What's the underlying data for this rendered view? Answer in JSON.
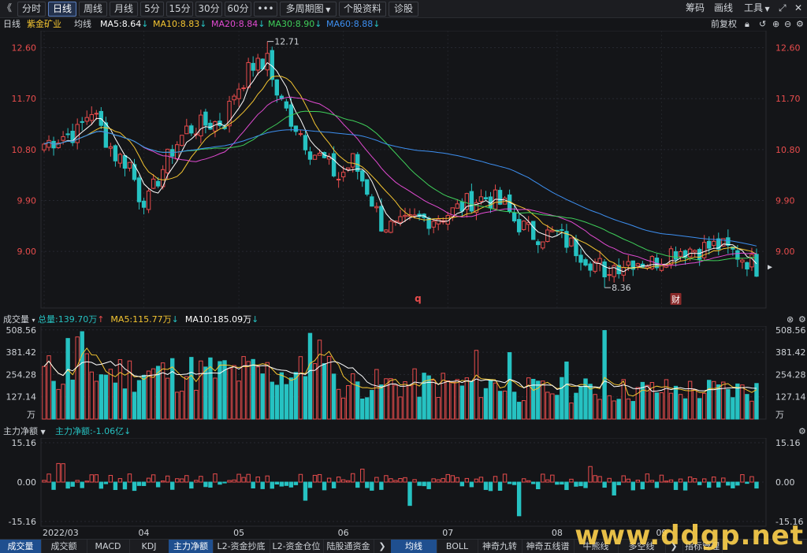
{
  "toolbar": {
    "back_glyph": "《",
    "periods": [
      "分时",
      "日线",
      "周线",
      "月线",
      "5分",
      "15分",
      "30分",
      "60分",
      "•••",
      "多周期图",
      "个股资料",
      "诊股"
    ],
    "active_period": "日线",
    "right_items": [
      "筹码",
      "画线",
      "工具"
    ],
    "expand_glyph": "⤢",
    "close_glyph": "✕"
  },
  "stock": {
    "period_label": "日线",
    "name": "紫金矿业",
    "ma_label": "均线",
    "ma": [
      {
        "label": "MA5:8.64",
        "color": "#ffffff",
        "dir": "down"
      },
      {
        "label": "MA10:8.83",
        "color": "#f4c531",
        "dir": "down"
      },
      {
        "label": "MA20:8.84",
        "color": "#e24bd2",
        "dir": "down"
      },
      {
        "label": "MA30:8.90",
        "color": "#3fcf5a",
        "dir": "down"
      },
      {
        "label": "MA60:8.88",
        "color": "#3d8ff0",
        "dir": "down"
      }
    ],
    "fq_label": "前复权",
    "arrow_down": "↓",
    "arrow_up": "↑"
  },
  "colors": {
    "up": "#e74c4c",
    "down": "#26c2c2",
    "ma5": "#ffffff",
    "ma10": "#f4c531",
    "ma20": "#e24bd2",
    "ma30": "#3fcf5a",
    "ma60": "#3d8ff0"
  },
  "chart_data": [
    {
      "type": "candlestick",
      "title": "日线",
      "y_ticks": [
        "12.60",
        "11.70",
        "10.80",
        "9.90",
        "9.00"
      ],
      "ylim": [
        8.0,
        12.9
      ],
      "annotations": {
        "high": "12.71",
        "low": "8.36",
        "event_q": "q",
        "event_cai": "财"
      },
      "x_ticks": [
        "2022/03",
        "04",
        "05",
        "06",
        "07",
        "08",
        "09"
      ],
      "series_names": [
        "MA5",
        "MA10",
        "MA20",
        "MA30",
        "MA60"
      ]
    },
    {
      "type": "bar",
      "title": "成交量",
      "legend": [
        {
          "label": "总量:139.70万",
          "color": "#26c2c2",
          "dir": "up"
        },
        {
          "label": "MA5:115.77万",
          "color": "#f4c531",
          "dir": "down"
        },
        {
          "label": "MA10:185.09万",
          "color": "#ffffff",
          "dir": "down"
        }
      ],
      "y_ticks": [
        "508.56",
        "381.42",
        "254.28",
        "127.14"
      ],
      "unit": "万",
      "ylim": [
        0,
        530
      ]
    },
    {
      "type": "bar",
      "title": "主力净额",
      "legend": [
        {
          "label": "主力净额:-1.06亿",
          "color": "#26c2c2",
          "dir": "down"
        }
      ],
      "y_ticks": [
        "15.16",
        "0.00",
        "-15.16"
      ],
      "ylim": [
        -17,
        17
      ]
    }
  ],
  "bottom_tabs": [
    "成交量",
    "成交额",
    "MACD",
    "KDJ",
    "主力净额",
    "L2-资金抄底",
    "L2-资金仓位",
    "陆股通资金",
    "均线",
    "BOLL",
    "神奇九转",
    "神奇五线谱",
    "牛熊线",
    "多空线",
    "指标管理"
  ],
  "active_bottom_tabs": [
    "成交量",
    "主力净额",
    "均线"
  ],
  "watermark": "www.ddgp.net"
}
